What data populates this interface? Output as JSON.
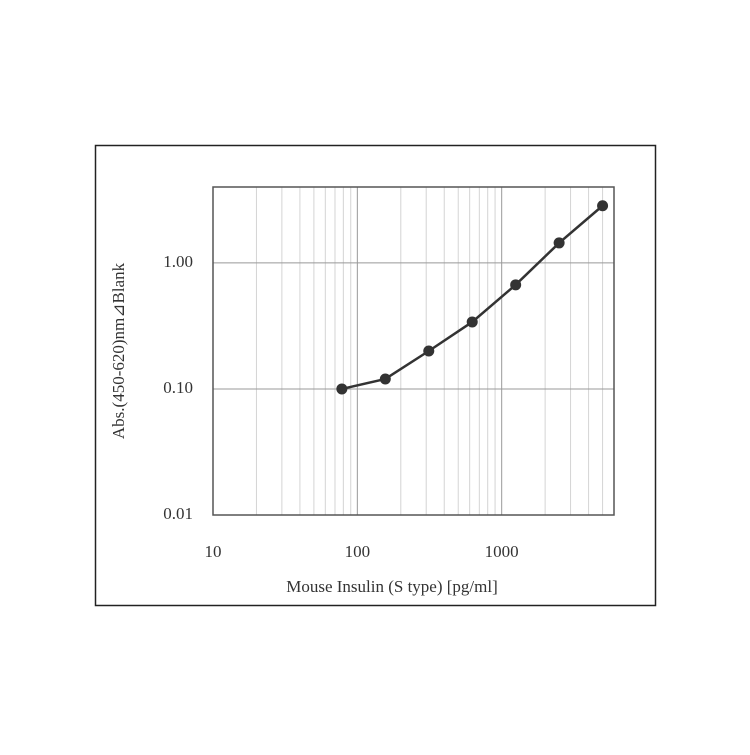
{
  "chart_data": {
    "type": "line",
    "x_label": "Mouse Insulin (S type) [pg/ml]",
    "y_label": "Abs.(450-620)nm⊿Blank",
    "x": [
      78.125,
      156.25,
      312.5,
      625,
      1250,
      2500,
      5000
    ],
    "series": [
      {
        "color": "#333333",
        "values": [
          0.1,
          0.12,
          0.2,
          0.34,
          0.67,
          1.44,
          2.84
        ]
      }
    ],
    "x_scale": "log",
    "y_scale": "log",
    "xlim": [
      10,
      6000
    ],
    "ylim": [
      0.01,
      4
    ],
    "xticks": [
      10,
      100,
      1000
    ],
    "xminorticks": [
      20,
      30,
      40,
      50,
      60,
      70,
      80,
      90,
      200,
      300,
      400,
      500,
      600,
      700,
      800,
      900,
      2000,
      3000,
      4000,
      5000
    ],
    "yticks": [
      0.01,
      {
        "value": 0.1,
        "label": "0.10"
      },
      {
        "value": 1,
        "label": "1.00"
      }
    ],
    "grid": true
  }
}
